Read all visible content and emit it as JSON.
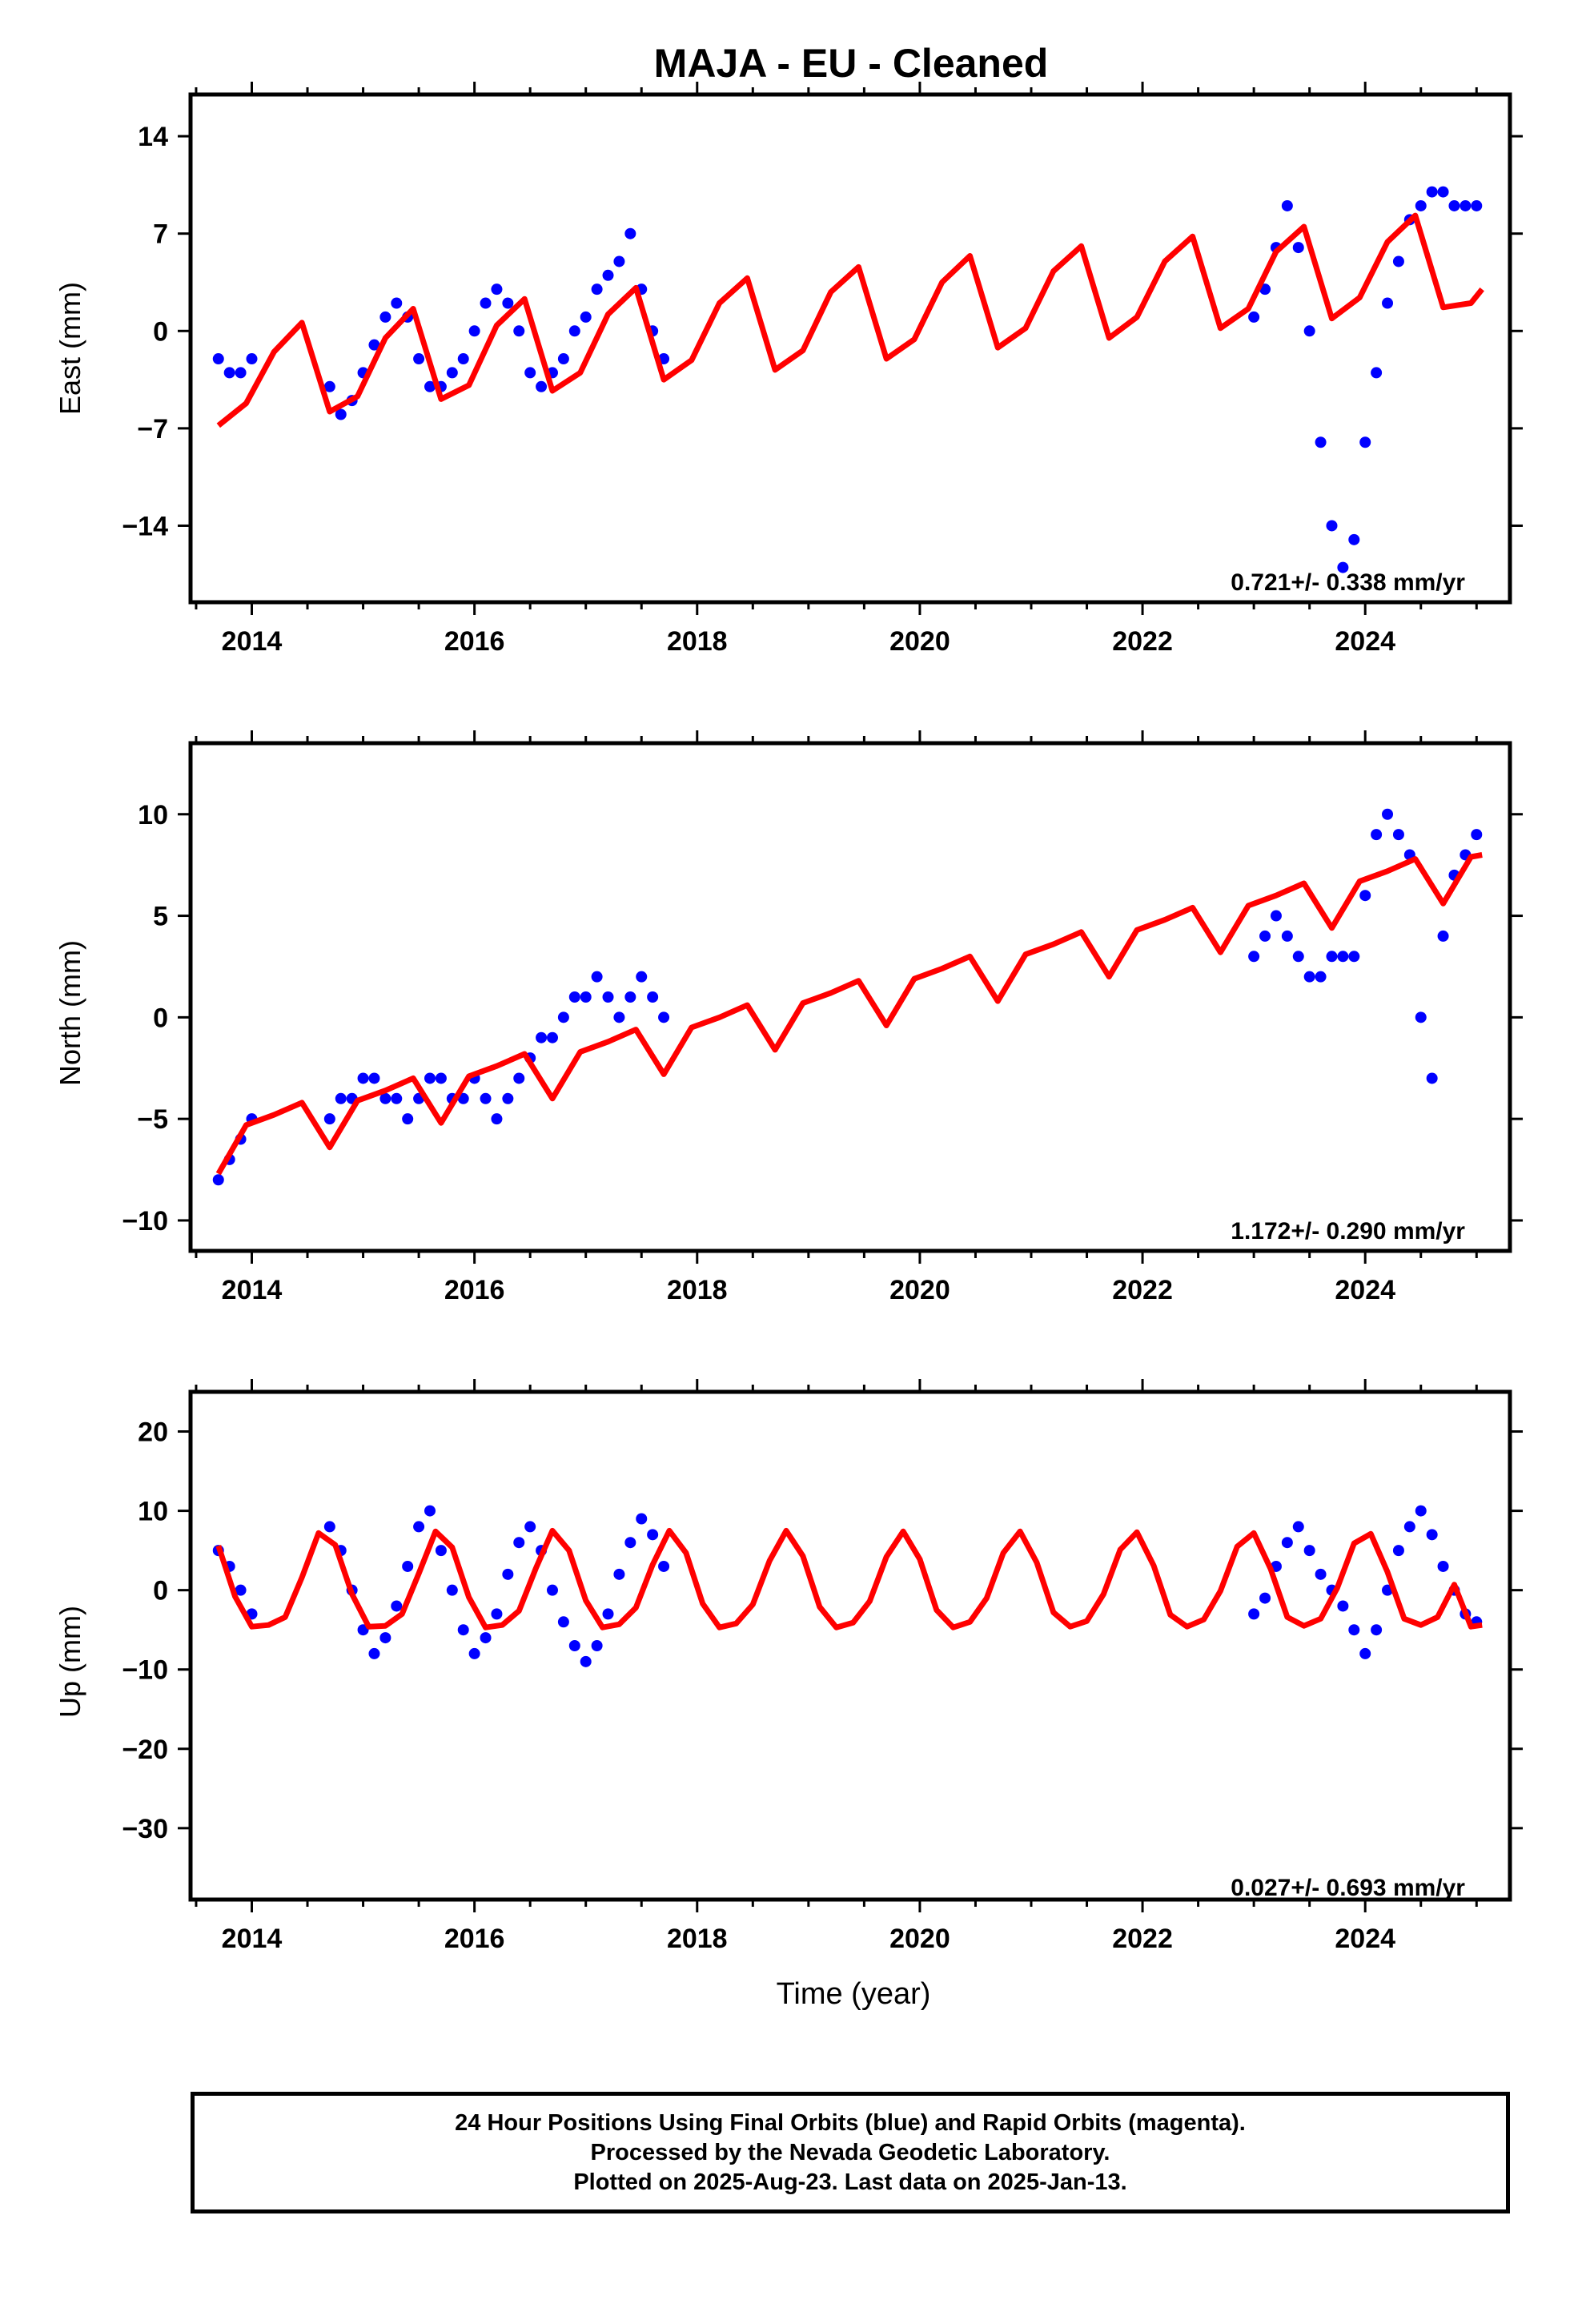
{
  "title": "MAJA  - EU - Cleaned",
  "colors": {
    "data": "#0000ff",
    "model": "#ff0000",
    "frame": "#000000"
  },
  "x_axis": {
    "label": "Time (year)",
    "range": [
      2013.45,
      2025.3
    ],
    "ticks": [
      "2014",
      "2016",
      "2018",
      "2020",
      "2022",
      "2024"
    ]
  },
  "caption": [
    "24 Hour Positions Using Final Orbits (blue) and Rapid Orbits (magenta).",
    "Processed by the Nevada Geodetic Laboratory.",
    "Plotted on 2025-Aug-23. Last data on 2025-Jan-13."
  ],
  "chart_data": [
    {
      "type": "scatter",
      "panel": "east",
      "ylabel": "East (mm)",
      "ylim": [
        -19.5,
        17
      ],
      "yticks": [
        14,
        7,
        0,
        -7,
        -14
      ],
      "rate_label": "0.721+/- 0.338 mm/yr",
      "series": [
        {
          "role": "daily positions",
          "x": [
            2013.7,
            2013.8,
            2013.9,
            2014.0,
            2014.7,
            2014.8,
            2014.9,
            2015.0,
            2015.1,
            2015.2,
            2015.3,
            2015.4,
            2015.5,
            2015.6,
            2015.7,
            2015.8,
            2015.9,
            2016.0,
            2016.1,
            2016.2,
            2016.3,
            2016.4,
            2016.5,
            2016.6,
            2016.7,
            2016.8,
            2016.9,
            2017.0,
            2017.1,
            2017.2,
            2017.3,
            2017.4,
            2017.5,
            2017.6,
            2017.7,
            2023.0,
            2023.1,
            2023.2,
            2023.3,
            2023.4,
            2023.5,
            2023.6,
            2023.7,
            2023.8,
            2023.9,
            2024.0,
            2024.1,
            2024.2,
            2024.3,
            2024.4,
            2024.5,
            2024.6,
            2024.7,
            2024.8,
            2024.9,
            2025.0
          ],
          "y": [
            -2,
            -3,
            -3,
            -2,
            -4,
            -6,
            -5,
            -3,
            -1,
            1,
            2,
            1,
            -2,
            -4,
            -4,
            -3,
            -2,
            0,
            2,
            3,
            2,
            0,
            -3,
            -4,
            -3,
            -2,
            0,
            1,
            3,
            4,
            5,
            7,
            3,
            0,
            -2,
            1,
            3,
            6,
            9,
            6,
            0,
            -8,
            -14,
            -17,
            -15,
            -8,
            -3,
            2,
            5,
            8,
            9,
            10,
            10,
            9,
            9,
            9
          ]
        },
        {
          "role": "model",
          "x": [
            2013.7,
            2013.95,
            2014.2,
            2014.45,
            2014.7,
            2014.95,
            2015.2,
            2015.45,
            2015.7,
            2015.95,
            2016.2,
            2016.45,
            2016.7,
            2016.95,
            2017.2,
            2017.45,
            2017.7,
            2017.95,
            2018.2,
            2018.45,
            2018.7,
            2018.95,
            2019.2,
            2019.45,
            2019.7,
            2019.95,
            2020.2,
            2020.45,
            2020.7,
            2020.95,
            2021.2,
            2021.45,
            2021.7,
            2021.95,
            2022.2,
            2022.45,
            2022.7,
            2022.95,
            2023.2,
            2023.45,
            2023.7,
            2023.95,
            2024.2,
            2024.45,
            2024.7,
            2024.95,
            2025.05
          ],
          "y": [
            -6.8,
            -5.2,
            -1.5,
            0.6,
            -5.8,
            -4.7,
            -0.5,
            1.6,
            -4.9,
            -3.9,
            0.4,
            2.3,
            -4.3,
            -3.0,
            1.2,
            3.1,
            -3.5,
            -2.1,
            2.0,
            3.8,
            -2.8,
            -1.4,
            2.8,
            4.6,
            -2.0,
            -0.6,
            3.5,
            5.4,
            -1.2,
            0.2,
            4.3,
            6.1,
            -0.5,
            1.0,
            5.0,
            6.8,
            0.2,
            1.6,
            5.7,
            7.5,
            0.9,
            2.4,
            6.4,
            8.3,
            1.7,
            2.0,
            3.0
          ]
        }
      ]
    },
    {
      "type": "scatter",
      "panel": "north",
      "ylabel": "North (mm)",
      "ylim": [
        -11.5,
        13.5
      ],
      "yticks": [
        10,
        5,
        0,
        -5,
        -10
      ],
      "rate_label": "1.172+/- 0.290 mm/yr",
      "series": [
        {
          "role": "daily positions",
          "x": [
            2013.7,
            2013.8,
            2013.9,
            2014.0,
            2014.7,
            2014.8,
            2014.9,
            2015.0,
            2015.1,
            2015.2,
            2015.3,
            2015.4,
            2015.5,
            2015.6,
            2015.7,
            2015.8,
            2015.9,
            2016.0,
            2016.1,
            2016.2,
            2016.3,
            2016.4,
            2016.5,
            2016.6,
            2016.7,
            2016.8,
            2016.9,
            2017.0,
            2017.1,
            2017.2,
            2017.3,
            2017.4,
            2017.5,
            2017.6,
            2017.7,
            2023.0,
            2023.1,
            2023.2,
            2023.3,
            2023.4,
            2023.5,
            2023.6,
            2023.7,
            2023.8,
            2023.9,
            2024.0,
            2024.1,
            2024.2,
            2024.3,
            2024.4,
            2024.5,
            2024.6,
            2024.7,
            2024.8,
            2024.9,
            2025.0
          ],
          "y": [
            -8,
            -7,
            -6,
            -5,
            -5,
            -4,
            -4,
            -3,
            -3,
            -4,
            -4,
            -5,
            -4,
            -3,
            -3,
            -4,
            -4,
            -3,
            -4,
            -5,
            -4,
            -3,
            -2,
            -1,
            -1,
            0,
            1,
            1,
            2,
            1,
            0,
            1,
            2,
            1,
            0,
            3,
            4,
            5,
            4,
            3,
            2,
            2,
            3,
            3,
            3,
            6,
            9,
            10,
            9,
            8,
            0,
            -3,
            4,
            7,
            8,
            9
          ]
        },
        {
          "role": "model",
          "x": [
            2013.7,
            2013.95,
            2014.2,
            2014.45,
            2014.7,
            2014.95,
            2015.2,
            2015.45,
            2015.7,
            2015.95,
            2016.2,
            2016.45,
            2016.7,
            2016.95,
            2017.2,
            2017.45,
            2017.7,
            2017.95,
            2018.2,
            2018.45,
            2018.7,
            2018.95,
            2019.2,
            2019.45,
            2019.7,
            2019.95,
            2020.2,
            2020.45,
            2020.7,
            2020.95,
            2021.2,
            2021.45,
            2021.7,
            2021.95,
            2022.2,
            2022.45,
            2022.7,
            2022.95,
            2023.2,
            2023.45,
            2023.7,
            2023.95,
            2024.2,
            2024.45,
            2024.7,
            2024.95,
            2025.05
          ],
          "y": [
            -7.7,
            -5.3,
            -4.8,
            -4.2,
            -6.4,
            -4.1,
            -3.6,
            -3.0,
            -5.2,
            -2.9,
            -2.4,
            -1.8,
            -4.0,
            -1.7,
            -1.2,
            -0.6,
            -2.8,
            -0.5,
            0.0,
            0.6,
            -1.6,
            0.7,
            1.2,
            1.8,
            -0.4,
            1.9,
            2.4,
            3.0,
            0.8,
            3.1,
            3.6,
            4.2,
            2.0,
            4.3,
            4.8,
            5.4,
            3.2,
            5.5,
            6.0,
            6.6,
            4.4,
            6.7,
            7.2,
            7.8,
            5.6,
            7.9,
            8.0
          ]
        }
      ]
    },
    {
      "type": "scatter",
      "panel": "up",
      "ylabel": "Up (mm)",
      "ylim": [
        -39,
        25
      ],
      "yticks": [
        20,
        10,
        0,
        -10,
        -20,
        -30
      ],
      "rate_label": "0.027+/- 0.693 mm/yr",
      "series": [
        {
          "role": "daily positions",
          "x": [
            2013.7,
            2013.8,
            2013.9,
            2014.0,
            2014.7,
            2014.8,
            2014.9,
            2015.0,
            2015.1,
            2015.2,
            2015.3,
            2015.4,
            2015.5,
            2015.6,
            2015.7,
            2015.8,
            2015.9,
            2016.0,
            2016.1,
            2016.2,
            2016.3,
            2016.4,
            2016.5,
            2016.6,
            2016.7,
            2016.8,
            2016.9,
            2017.0,
            2017.1,
            2017.2,
            2017.3,
            2017.4,
            2017.5,
            2017.6,
            2017.7,
            2023.0,
            2023.1,
            2023.2,
            2023.3,
            2023.4,
            2023.5,
            2023.6,
            2023.7,
            2023.8,
            2023.9,
            2024.0,
            2024.1,
            2024.2,
            2024.3,
            2024.4,
            2024.5,
            2024.6,
            2024.7,
            2024.8,
            2024.9,
            2025.0
          ],
          "y": [
            5,
            3,
            0,
            -3,
            8,
            5,
            0,
            -5,
            -8,
            -6,
            -2,
            3,
            8,
            10,
            5,
            0,
            -5,
            -8,
            -6,
            -3,
            2,
            6,
            8,
            5,
            0,
            -4,
            -7,
            -9,
            -7,
            -3,
            2,
            6,
            9,
            7,
            3,
            -3,
            -1,
            3,
            6,
            8,
            5,
            2,
            0,
            -2,
            -5,
            -8,
            -5,
            0,
            5,
            8,
            10,
            7,
            3,
            0,
            -3,
            -4
          ]
        },
        {
          "role": "model",
          "x": [
            2013.7,
            2013.85,
            2014.0,
            2014.15,
            2014.3,
            2014.45,
            2014.6,
            2014.75,
            2014.9,
            2015.05,
            2015.2,
            2015.35,
            2015.5,
            2015.65,
            2015.8,
            2015.95,
            2016.1,
            2016.25,
            2016.4,
            2016.55,
            2016.7,
            2016.85,
            2017.0,
            2017.15,
            2017.3,
            2017.45,
            2017.6,
            2017.75,
            2017.9,
            2018.05,
            2018.2,
            2018.35,
            2018.5,
            2018.65,
            2018.8,
            2018.95,
            2019.1,
            2019.25,
            2019.4,
            2019.55,
            2019.7,
            2019.85,
            2020.0,
            2020.15,
            2020.3,
            2020.45,
            2020.6,
            2020.75,
            2020.9,
            2021.05,
            2021.2,
            2021.35,
            2021.5,
            2021.65,
            2021.8,
            2021.95,
            2022.1,
            2022.25,
            2022.4,
            2022.55,
            2022.7,
            2022.85,
            2023.0,
            2023.15,
            2023.3,
            2023.45,
            2023.6,
            2023.75,
            2023.9,
            2024.05,
            2024.2,
            2024.35,
            2024.5,
            2024.65,
            2024.8,
            2024.95,
            2025.05
          ],
          "y": [
            5.6,
            -0.8,
            -4.6,
            -4.4,
            -3.4,
            1.6,
            7.2,
            5.7,
            -0.5,
            -4.6,
            -4.5,
            -3.0,
            2.1,
            7.4,
            5.4,
            -0.9,
            -4.7,
            -4.4,
            -2.6,
            2.7,
            7.5,
            5.0,
            -1.3,
            -4.7,
            -4.3,
            -2.2,
            3.2,
            7.5,
            4.7,
            -1.7,
            -4.7,
            -4.2,
            -1.8,
            3.7,
            7.5,
            4.3,
            -2.1,
            -4.7,
            -4.1,
            -1.4,
            4.2,
            7.4,
            3.9,
            -2.5,
            -4.7,
            -4.0,
            -1.0,
            4.7,
            7.4,
            3.5,
            -2.8,
            -4.6,
            -3.9,
            -0.5,
            5.1,
            7.3,
            3.1,
            -3.1,
            -4.6,
            -3.7,
            -0.1,
            5.5,
            7.2,
            2.7,
            -3.4,
            -4.5,
            -3.6,
            0.3,
            5.9,
            7.1,
            2.3,
            -3.6,
            -4.4,
            -3.4,
            0.7,
            -4.6,
            -4.4
          ]
        }
      ]
    }
  ]
}
